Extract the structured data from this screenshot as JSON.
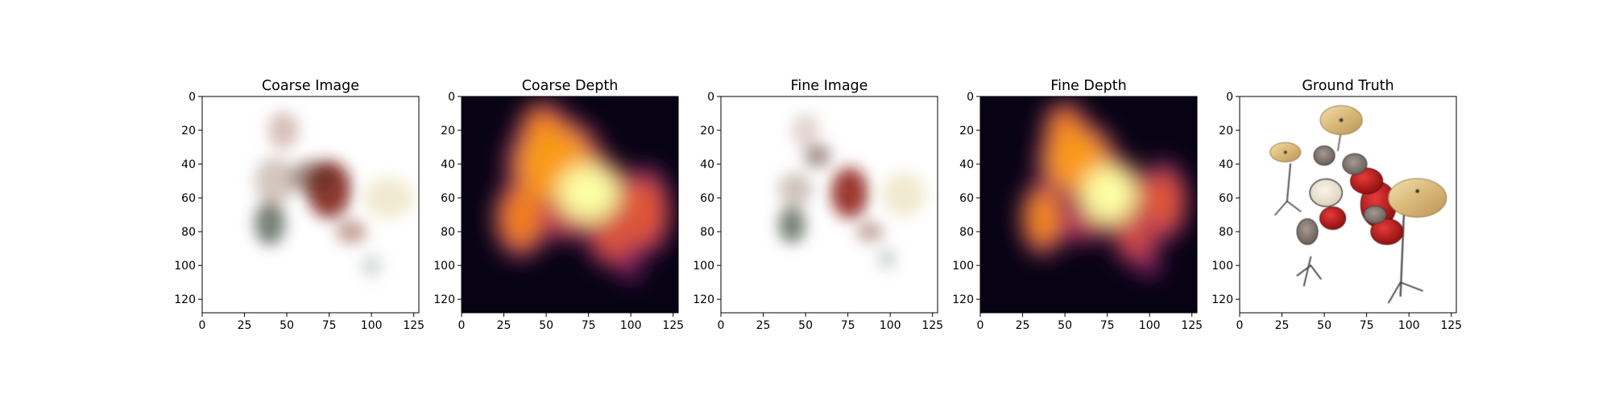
{
  "figure": {
    "title": "",
    "background": "#ffffff"
  },
  "chart_data": [
    {
      "type": "image",
      "title": "Coarse Image",
      "content": "blurry RGB reconstruction of a drum kit on white background",
      "xlim": [
        0,
        128
      ],
      "ylim": [
        128,
        0
      ],
      "xticks": [
        0,
        25,
        50,
        75,
        100,
        125
      ],
      "yticks": [
        0,
        20,
        40,
        60,
        80,
        100,
        120
      ],
      "blobs": [
        {
          "x": 75,
          "y": 55,
          "rx": 13,
          "ry": 17,
          "color": "#7a1b10",
          "opacity": 0.85
        },
        {
          "x": 65,
          "y": 48,
          "rx": 14,
          "ry": 10,
          "color": "#5a2a20",
          "opacity": 0.55
        },
        {
          "x": 48,
          "y": 20,
          "rx": 9,
          "ry": 11,
          "color": "#b78a80",
          "opacity": 0.55
        },
        {
          "x": 40,
          "y": 75,
          "rx": 9,
          "ry": 13,
          "color": "#3a4a3a",
          "opacity": 0.7
        },
        {
          "x": 43,
          "y": 50,
          "rx": 12,
          "ry": 14,
          "color": "#a89080",
          "opacity": 0.5
        },
        {
          "x": 110,
          "y": 60,
          "rx": 15,
          "ry": 12,
          "color": "#e8dcb0",
          "opacity": 0.6
        },
        {
          "x": 88,
          "y": 80,
          "rx": 9,
          "ry": 7,
          "color": "#8a4030",
          "opacity": 0.5
        },
        {
          "x": 100,
          "y": 100,
          "rx": 6,
          "ry": 7,
          "color": "#9aa0a0",
          "opacity": 0.4
        }
      ]
    },
    {
      "type": "heatmap",
      "title": "Coarse Depth",
      "colormap": "inferno",
      "xlim": [
        0,
        128
      ],
      "ylim": [
        128,
        0
      ],
      "xticks": [
        0,
        25,
        50,
        75,
        100,
        125
      ],
      "yticks": [
        0,
        20,
        40,
        60,
        80,
        100,
        120
      ],
      "blobs": [
        {
          "x": 75,
          "y": 57,
          "rx": 18,
          "ry": 17,
          "v": 1.0
        },
        {
          "x": 55,
          "y": 40,
          "rx": 22,
          "ry": 22,
          "v": 0.78
        },
        {
          "x": 48,
          "y": 20,
          "rx": 11,
          "ry": 13,
          "v": 0.72
        },
        {
          "x": 35,
          "y": 72,
          "rx": 12,
          "ry": 18,
          "v": 0.72
        },
        {
          "x": 108,
          "y": 68,
          "rx": 12,
          "ry": 20,
          "v": 0.62
        },
        {
          "x": 90,
          "y": 85,
          "rx": 12,
          "ry": 12,
          "v": 0.6
        },
        {
          "x": 62,
          "y": 72,
          "rx": 14,
          "ry": 10,
          "v": 0.55
        },
        {
          "x": 100,
          "y": 102,
          "rx": 5,
          "ry": 6,
          "v": 0.4
        }
      ]
    },
    {
      "type": "image",
      "title": "Fine Image",
      "content": "sharper RGB reconstruction of a drum kit on white background",
      "xlim": [
        0,
        128
      ],
      "ylim": [
        128,
        0
      ],
      "xticks": [
        0,
        25,
        50,
        75,
        100,
        125
      ],
      "yticks": [
        0,
        20,
        40,
        60,
        80,
        100,
        120
      ],
      "blobs": [
        {
          "x": 76,
          "y": 57,
          "rx": 11,
          "ry": 15,
          "color": "#8a1a10",
          "opacity": 0.85
        },
        {
          "x": 57,
          "y": 35,
          "rx": 8,
          "ry": 7,
          "color": "#6a4a40",
          "opacity": 0.6
        },
        {
          "x": 50,
          "y": 20,
          "rx": 8,
          "ry": 10,
          "color": "#c4aaa0",
          "opacity": 0.5
        },
        {
          "x": 42,
          "y": 76,
          "rx": 8,
          "ry": 11,
          "color": "#4a5a4a",
          "opacity": 0.75
        },
        {
          "x": 44,
          "y": 55,
          "rx": 10,
          "ry": 10,
          "color": "#a08a7a",
          "opacity": 0.5
        },
        {
          "x": 108,
          "y": 58,
          "rx": 13,
          "ry": 13,
          "color": "#e8dcb0",
          "opacity": 0.6
        },
        {
          "x": 88,
          "y": 80,
          "rx": 8,
          "ry": 6,
          "color": "#8a4a40",
          "opacity": 0.5
        },
        {
          "x": 98,
          "y": 96,
          "rx": 5,
          "ry": 6,
          "color": "#8a9090",
          "opacity": 0.45
        }
      ]
    },
    {
      "type": "heatmap",
      "title": "Fine Depth",
      "colormap": "inferno",
      "xlim": [
        0,
        128
      ],
      "ylim": [
        128,
        0
      ],
      "xticks": [
        0,
        25,
        50,
        75,
        100,
        125
      ],
      "yticks": [
        0,
        20,
        40,
        60,
        80,
        100,
        120
      ],
      "blobs": [
        {
          "x": 76,
          "y": 58,
          "rx": 16,
          "ry": 17,
          "v": 1.0
        },
        {
          "x": 57,
          "y": 38,
          "rx": 18,
          "ry": 18,
          "v": 0.78
        },
        {
          "x": 50,
          "y": 20,
          "rx": 10,
          "ry": 13,
          "v": 0.72
        },
        {
          "x": 37,
          "y": 72,
          "rx": 10,
          "ry": 17,
          "v": 0.74
        },
        {
          "x": 108,
          "y": 62,
          "rx": 11,
          "ry": 18,
          "v": 0.62
        },
        {
          "x": 92,
          "y": 85,
          "rx": 10,
          "ry": 11,
          "v": 0.58
        },
        {
          "x": 60,
          "y": 75,
          "rx": 11,
          "ry": 9,
          "v": 0.5
        },
        {
          "x": 100,
          "y": 100,
          "rx": 5,
          "ry": 6,
          "v": 0.4
        }
      ]
    },
    {
      "type": "image",
      "title": "Ground Truth",
      "content": "rendered drum kit with cymbals and red drums on white background",
      "xlim": [
        0,
        128
      ],
      "ylim": [
        128,
        0
      ],
      "xticks": [
        0,
        25,
        50,
        75,
        100,
        125
      ],
      "yticks": [
        0,
        20,
        40,
        60,
        80,
        100,
        120
      ]
    }
  ]
}
